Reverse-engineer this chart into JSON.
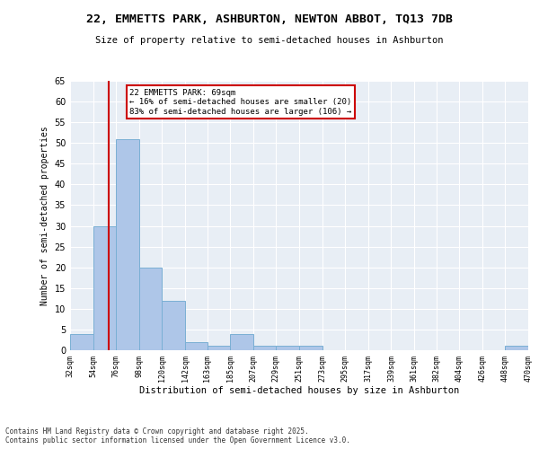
{
  "title_line1": "22, EMMETTS PARK, ASHBURTON, NEWTON ABBOT, TQ13 7DB",
  "title_line2": "Size of property relative to semi-detached houses in Ashburton",
  "xlabel": "Distribution of semi-detached houses by size in Ashburton",
  "ylabel": "Number of semi-detached properties",
  "bins": [
    32,
    54,
    76,
    98,
    120,
    142,
    163,
    185,
    207,
    229,
    251,
    273,
    295,
    317,
    339,
    361,
    382,
    404,
    426,
    448,
    470
  ],
  "counts": [
    4,
    30,
    51,
    20,
    12,
    2,
    1,
    4,
    1,
    1,
    1,
    0,
    0,
    0,
    0,
    0,
    0,
    0,
    0,
    1
  ],
  "bar_color": "#aec6e8",
  "bar_edge_color": "#7aafd4",
  "property_size": 69,
  "marker_color": "#cc0000",
  "annotation_text": "22 EMMETTS PARK: 69sqm\n← 16% of semi-detached houses are smaller (20)\n83% of semi-detached houses are larger (106) →",
  "annotation_box_color": "#ffffff",
  "annotation_box_edge_color": "#cc0000",
  "ylim": [
    0,
    65
  ],
  "yticks": [
    0,
    5,
    10,
    15,
    20,
    25,
    30,
    35,
    40,
    45,
    50,
    55,
    60,
    65
  ],
  "bg_color": "#e8eef5",
  "footnote": "Contains HM Land Registry data © Crown copyright and database right 2025.\nContains public sector information licensed under the Open Government Licence v3.0.",
  "tick_labels": [
    "32sqm",
    "54sqm",
    "76sqm",
    "98sqm",
    "120sqm",
    "142sqm",
    "163sqm",
    "185sqm",
    "207sqm",
    "229sqm",
    "251sqm",
    "273sqm",
    "295sqm",
    "317sqm",
    "339sqm",
    "361sqm",
    "382sqm",
    "404sqm",
    "426sqm",
    "448sqm",
    "470sqm"
  ]
}
